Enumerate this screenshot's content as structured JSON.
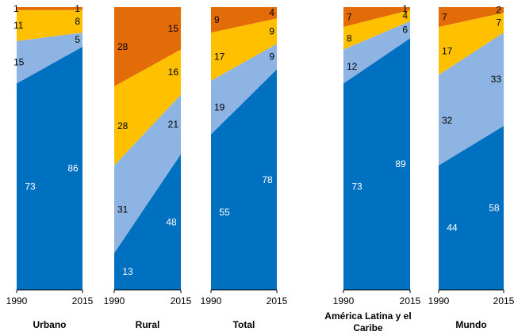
{
  "chart_data": {
    "type": "area",
    "stacked": true,
    "normalized_percent": true,
    "ylim": [
      0,
      100
    ],
    "x": [
      "1990",
      "2015"
    ],
    "colors": {
      "series_1": "#0070C0",
      "series_2": "#8EB4E3",
      "series_3": "#FFC000",
      "series_4": "#E36C09"
    },
    "panels": [
      {
        "title": "Urbano",
        "series": [
          {
            "values": [
              73,
              86
            ],
            "labels": [
              "73",
              "86"
            ]
          },
          {
            "values": [
              15,
              5
            ],
            "labels": [
              "15",
              "5"
            ]
          },
          {
            "values": [
              11,
              8
            ],
            "labels": [
              "11",
              "8"
            ]
          },
          {
            "values": [
              1,
              1
            ],
            "labels": [
              "1",
              "1"
            ]
          }
        ]
      },
      {
        "title": "Rural",
        "series": [
          {
            "values": [
              13,
              48
            ],
            "labels": [
              "13",
              "48"
            ]
          },
          {
            "values": [
              31,
              21
            ],
            "labels": [
              "31",
              "21"
            ]
          },
          {
            "values": [
              28,
              16
            ],
            "labels": [
              "28",
              "16"
            ]
          },
          {
            "values": [
              28,
              15
            ],
            "labels": [
              "28",
              "15"
            ]
          }
        ]
      },
      {
        "title": "Total",
        "series": [
          {
            "values": [
              55,
              78
            ],
            "labels": [
              "55",
              "78"
            ]
          },
          {
            "values": [
              19,
              9
            ],
            "labels": [
              "19",
              "9"
            ]
          },
          {
            "values": [
              17,
              9
            ],
            "labels": [
              "17",
              "9"
            ]
          },
          {
            "values": [
              9,
              4
            ],
            "labels": [
              "9",
              "4"
            ]
          }
        ]
      },
      {
        "title": "América Latina y el Caribe",
        "series": [
          {
            "values": [
              73,
              89
            ],
            "labels": [
              "73",
              "89"
            ]
          },
          {
            "values": [
              12,
              6
            ],
            "labels": [
              "12",
              "6"
            ]
          },
          {
            "values": [
              8,
              4
            ],
            "labels": [
              "8",
              "4"
            ]
          },
          {
            "values": [
              7,
              1
            ],
            "labels": [
              "7",
              "1"
            ]
          }
        ]
      },
      {
        "title": "Mundo",
        "series": [
          {
            "values": [
              44,
              58
            ],
            "labels": [
              "44",
              "58"
            ]
          },
          {
            "values": [
              32,
              33
            ],
            "labels": [
              "32",
              "33"
            ]
          },
          {
            "values": [
              17,
              7
            ],
            "labels": [
              "17",
              "7"
            ]
          },
          {
            "values": [
              7,
              2
            ],
            "labels": [
              "7",
              "2"
            ]
          }
        ]
      }
    ]
  }
}
